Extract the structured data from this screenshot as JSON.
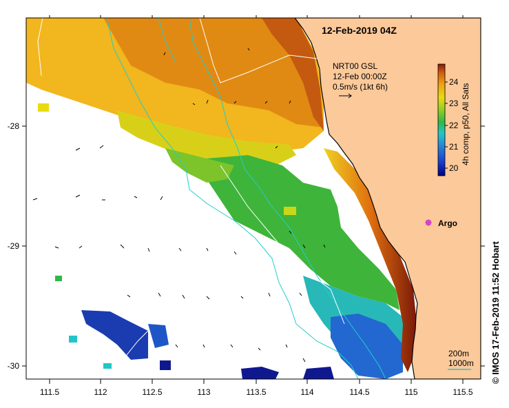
{
  "map": {
    "title": "12-Feb-2019 04Z",
    "source": {
      "line1": "NRT00 GSL",
      "line2": "12-Feb 00:00Z",
      "line3": "0.5m/s (1kt 6h)"
    },
    "colorbar": {
      "label": "4h comp, p50, All Sats",
      "min": 19.7,
      "max": 24.9,
      "ticks": [
        "20",
        "21",
        "22",
        "23",
        "24"
      ]
    },
    "x_axis": {
      "unit": "deg E longitude",
      "ticks": [
        "111.5",
        "112",
        "112.5",
        "113",
        "113.5",
        "114",
        "114.5",
        "115",
        "115.5"
      ]
    },
    "y_axis": {
      "unit": "deg S latitude",
      "ticks": [
        "-28",
        "-29",
        "-30"
      ]
    },
    "argo": {
      "label": "Argo",
      "color": "#cc33cc"
    },
    "depth_legend": {
      "line1": "200m",
      "line2": "1000m",
      "color": "#22cccc"
    },
    "credit": "© IMOS 17-Feb-2019 11:52 Hobart",
    "colors": {
      "land": "#fcc99a",
      "coast": "#000000",
      "bathymetry": "#22cccc",
      "roads": "#ffffff"
    }
  }
}
